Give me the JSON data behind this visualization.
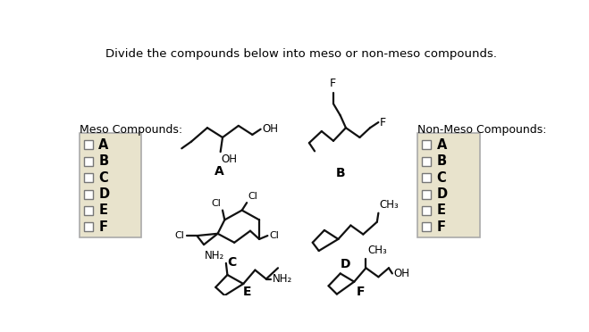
{
  "title": "Divide the compounds below into meso or non-meso compounds.",
  "title_fontsize": 9.5,
  "bg_color": "#ffffff",
  "box_bg": "#e8e3cc",
  "box_border": "#aaaaaa",
  "text_color": "#000000",
  "meso_label": "Meso Compounds:",
  "non_meso_label": "Non-Meso Compounds:",
  "checkbox_labels": [
    "A",
    "B",
    "C",
    "D",
    "E",
    "F"
  ],
  "line_color": "#111111",
  "line_width": 1.6
}
